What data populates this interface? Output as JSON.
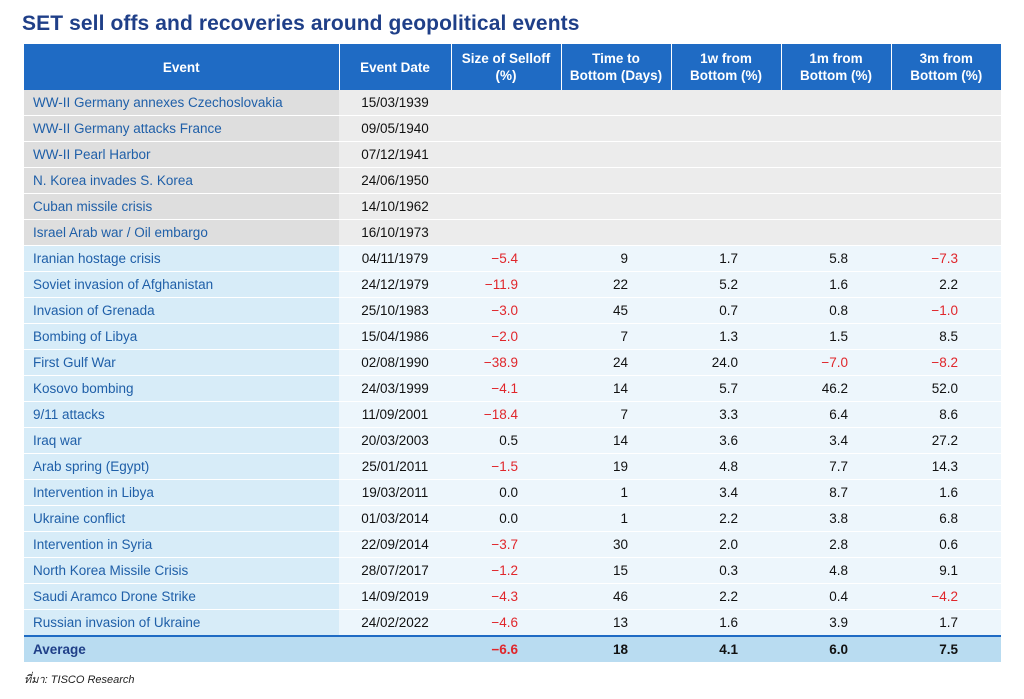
{
  "title": "SET sell offs and recoveries around geopolitical events",
  "headers": [
    "Event",
    "Event Date",
    "Size of Selloff (%)",
    "Time to Bottom (Days)",
    "1w from Bottom (%)",
    "1m from Bottom (%)",
    "3m from Bottom (%)"
  ],
  "rows": [
    {
      "event": "WW-II Germany annexes Czechoslovakia",
      "date": "15/03/1939",
      "selloff": "",
      "days": "",
      "w1": "",
      "m1": "",
      "m3": ""
    },
    {
      "event": "WW-II Germany attacks France",
      "date": "09/05/1940",
      "selloff": "",
      "days": "",
      "w1": "",
      "m1": "",
      "m3": ""
    },
    {
      "event": "WW-II Pearl Harbor",
      "date": "07/12/1941",
      "selloff": "",
      "days": "",
      "w1": "",
      "m1": "",
      "m3": ""
    },
    {
      "event": "N. Korea invades S. Korea",
      "date": "24/06/1950",
      "selloff": "",
      "days": "",
      "w1": "",
      "m1": "",
      "m3": ""
    },
    {
      "event": "Cuban missile crisis",
      "date": "14/10/1962",
      "selloff": "",
      "days": "",
      "w1": "",
      "m1": "",
      "m3": ""
    },
    {
      "event": "Israel Arab war / Oil embargo",
      "date": "16/10/1973",
      "selloff": "",
      "days": "",
      "w1": "",
      "m1": "",
      "m3": ""
    },
    {
      "event": "Iranian hostage crisis",
      "date": "04/11/1979",
      "selloff": "-5.4",
      "days": "9",
      "w1": "1.7",
      "m1": "5.8",
      "m3": "-7.3"
    },
    {
      "event": "Soviet invasion of Afghanistan",
      "date": "24/12/1979",
      "selloff": "-11.9",
      "days": "22",
      "w1": "5.2",
      "m1": "1.6",
      "m3": "2.2"
    },
    {
      "event": "Invasion of Grenada",
      "date": "25/10/1983",
      "selloff": "-3.0",
      "days": "45",
      "w1": "0.7",
      "m1": "0.8",
      "m3": "-1.0"
    },
    {
      "event": "Bombing of Libya",
      "date": "15/04/1986",
      "selloff": "-2.0",
      "days": "7",
      "w1": "1.3",
      "m1": "1.5",
      "m3": "8.5"
    },
    {
      "event": "First Gulf War",
      "date": "02/08/1990",
      "selloff": "-38.9",
      "days": "24",
      "w1": "24.0",
      "m1": "-7.0",
      "m3": "-8.2"
    },
    {
      "event": "Kosovo bombing",
      "date": "24/03/1999",
      "selloff": "-4.1",
      "days": "14",
      "w1": "5.7",
      "m1": "46.2",
      "m3": "52.0"
    },
    {
      "event": "9/11 attacks",
      "date": "11/09/2001",
      "selloff": "-18.4",
      "days": "7",
      "w1": "3.3",
      "m1": "6.4",
      "m3": "8.6"
    },
    {
      "event": "Iraq war",
      "date": "20/03/2003",
      "selloff": "0.5",
      "days": "14",
      "w1": "3.6",
      "m1": "3.4",
      "m3": "27.2"
    },
    {
      "event": "Arab spring (Egypt)",
      "date": "25/01/2011",
      "selloff": "-1.5",
      "days": "19",
      "w1": "4.8",
      "m1": "7.7",
      "m3": "14.3"
    },
    {
      "event": "Intervention in Libya",
      "date": "19/03/2011",
      "selloff": "0.0",
      "days": "1",
      "w1": "3.4",
      "m1": "8.7",
      "m3": "1.6"
    },
    {
      "event": "Ukraine conflict",
      "date": "01/03/2014",
      "selloff": "0.0",
      "days": "1",
      "w1": "2.2",
      "m1": "3.8",
      "m3": "6.8"
    },
    {
      "event": "Intervention in Syria",
      "date": "22/09/2014",
      "selloff": "-3.7",
      "days": "30",
      "w1": "2.0",
      "m1": "2.8",
      "m3": "0.6"
    },
    {
      "event": "North Korea Missile Crisis",
      "date": "28/07/2017",
      "selloff": "-1.2",
      "days": "15",
      "w1": "0.3",
      "m1": "4.8",
      "m3": "9.1"
    },
    {
      "event": "Saudi Aramco Drone Strike",
      "date": "14/09/2019",
      "selloff": "-4.3",
      "days": "46",
      "w1": "2.2",
      "m1": "0.4",
      "m3": "-4.2"
    },
    {
      "event": "Russian invasion of Ukraine",
      "date": "24/02/2022",
      "selloff": "-4.6",
      "days": "13",
      "w1": "1.6",
      "m1": "3.9",
      "m3": "1.7"
    }
  ],
  "average": {
    "event": "Average",
    "date": "",
    "selloff": "-6.6",
    "days": "18",
    "w1": "4.1",
    "m1": "6.0",
    "m3": "7.5"
  },
  "source": "ที่มา: TISCO Research",
  "colors": {
    "header": "#1f6bc4",
    "title": "#1f3f88",
    "negative": "#e0262b",
    "event_text": "#1f5fa8"
  }
}
